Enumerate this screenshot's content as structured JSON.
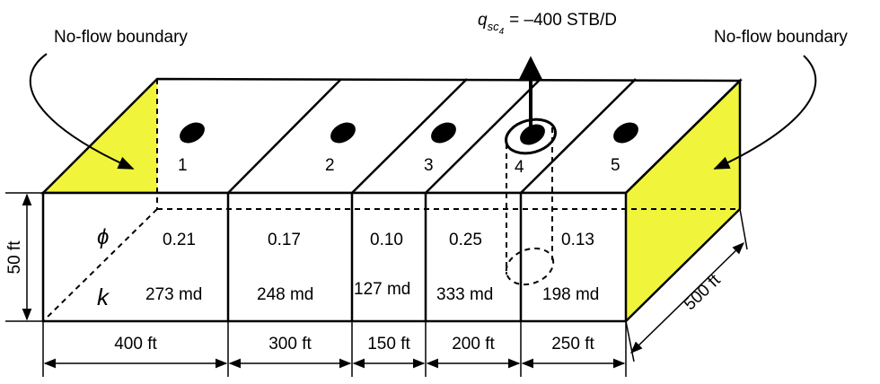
{
  "labels": {
    "no_flow_left": "No-flow boundary",
    "no_flow_right": "No-flow boundary",
    "well_rate_symbol": "q",
    "well_rate_subscript": "sc",
    "well_rate_subsubscript": "4",
    "well_rate_value": "= –400 STB/D",
    "phi_symbol": "ϕ",
    "k_symbol": "k",
    "height": "50 ft",
    "depth": "500 ft"
  },
  "blocks": [
    {
      "id": "1",
      "porosity": "0.21",
      "permeability": "273 md",
      "length": "400 ft"
    },
    {
      "id": "2",
      "porosity": "0.17",
      "permeability": "248 md",
      "length": "300 ft"
    },
    {
      "id": "3",
      "porosity": "0.10",
      "permeability": "127 md",
      "length": "150 ft"
    },
    {
      "id": "4",
      "porosity": "0.25",
      "permeability": "333 md",
      "length": "200 ft"
    },
    {
      "id": "5",
      "porosity": "0.13",
      "permeability": "198 md",
      "length": "250 ft"
    }
  ],
  "colors": {
    "boundary_fill": "#f0f53c",
    "stroke": "#000000"
  }
}
